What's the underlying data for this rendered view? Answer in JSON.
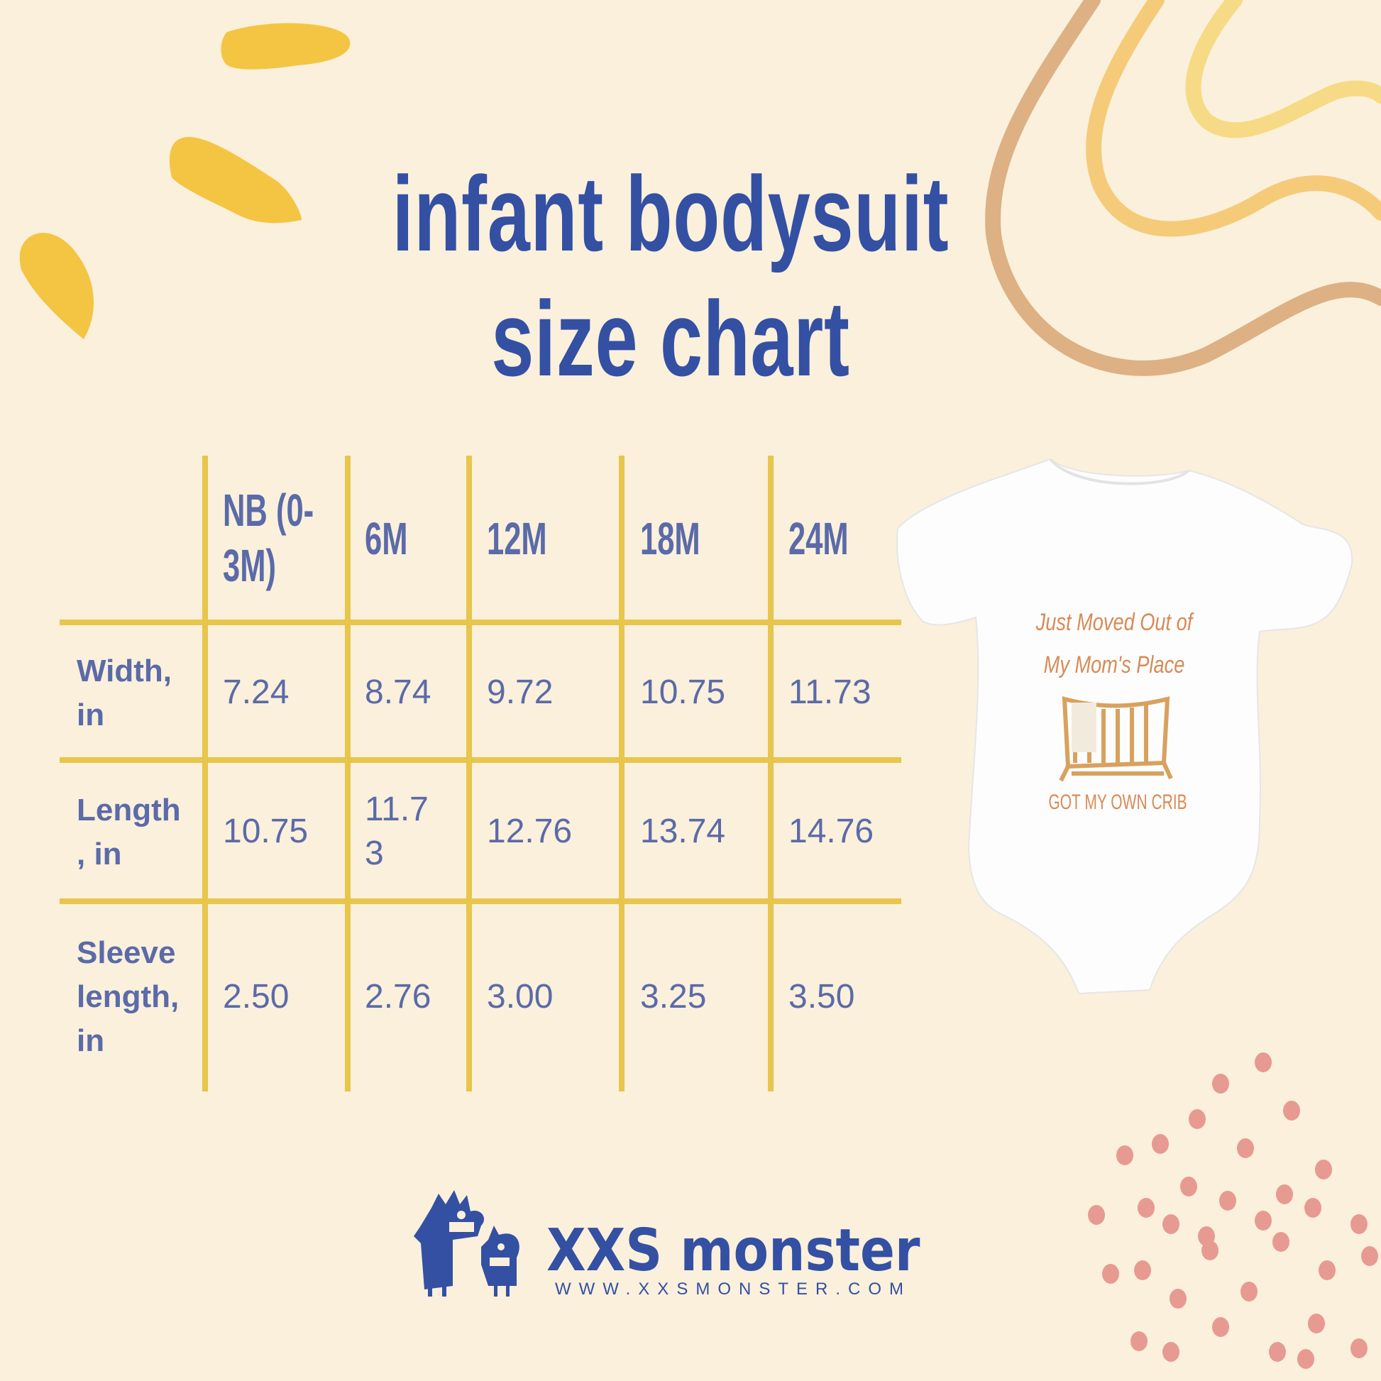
{
  "title": {
    "line1": "infant bodysuit",
    "line2": "size chart"
  },
  "colors": {
    "background": "#FAF0DC",
    "title": "#3450A3",
    "table_text": "#5B6AA8",
    "grid": "#E8C54B",
    "blob": "#F4C542",
    "dots": "#E79A92",
    "print": "#D98A55"
  },
  "table": {
    "columns": [
      "NB (0-\n3M)",
      "6M",
      "12M",
      "18M",
      "24M"
    ],
    "header_lines": [
      [
        "NB (0-",
        "3M)"
      ],
      [
        "6M"
      ],
      [
        "12M"
      ],
      [
        "18M"
      ],
      [
        "24M"
      ]
    ],
    "rows": [
      {
        "label_lines": [
          "Width,",
          "in"
        ],
        "values": [
          [
            "7.24"
          ],
          [
            "8.74"
          ],
          [
            "9.72"
          ],
          [
            "10.75"
          ],
          [
            "11.73"
          ]
        ]
      },
      {
        "label_lines": [
          "Length",
          ", in"
        ],
        "values": [
          [
            "10.75"
          ],
          [
            "11.7",
            "3"
          ],
          [
            "12.76"
          ],
          [
            "13.74"
          ],
          [
            "14.76"
          ]
        ]
      },
      {
        "label_lines": [
          "Sleeve",
          "length,",
          "in"
        ],
        "values": [
          [
            "2.50"
          ],
          [
            "2.76"
          ],
          [
            "3.00"
          ],
          [
            "3.25"
          ],
          [
            "3.50"
          ]
        ]
      }
    ]
  },
  "product": {
    "print_line1": "Just Moved Out of",
    "print_line2": "My Mom's Place",
    "print_line3": "GOT MY OWN CRIB"
  },
  "logo": {
    "name": "XXS monster",
    "url": "WWW.XXSMONSTER.COM"
  }
}
